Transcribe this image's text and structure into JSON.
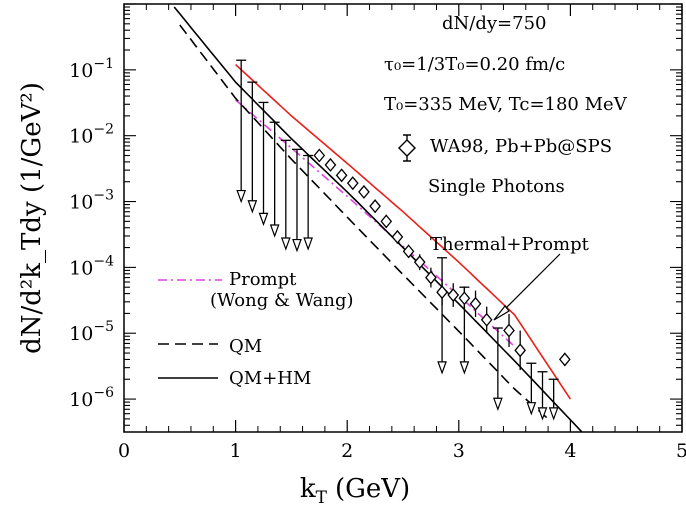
{
  "chart_data": {
    "type": "scatter",
    "xlabel": "k",
    "xlabel_sub": "T",
    "xlabel_unit": "(GeV)",
    "ylabel": "dN/d²k_Tdy (1/GeV²)",
    "xlim": [
      0,
      5
    ],
    "ylim_log10": [
      -6.5,
      0
    ],
    "yscale": "log",
    "x_ticks": [
      0,
      1,
      2,
      3,
      4,
      5
    ],
    "y_ticks": [
      -6,
      -5,
      -4,
      -3,
      -2,
      -1
    ],
    "annotations": {
      "line1": "dN/dy=750",
      "line2": "τ₀=1/3T₀=0.20 fm/c",
      "line3": "T₀=335 MeV, Tc=180 MeV",
      "data_label": "WA98, Pb+Pb@SPS",
      "single_photons": "Single Photons",
      "thermal_prompt": "Thermal+Prompt",
      "prompt_label": "Prompt",
      "prompt_sub": "(Wong & Wang)",
      "qm": "QM",
      "qm_hm": "QM+HM"
    },
    "series": [
      {
        "name": "Thermal+Prompt",
        "color": "#e8201c",
        "style": "solid",
        "x": [
          1.0,
          1.5,
          2.0,
          2.5,
          3.0,
          3.5,
          4.0
        ],
        "y": [
          0.12,
          0.02,
          0.0038,
          0.0007,
          0.00012,
          1.9e-05,
          1e-06
        ]
      },
      {
        "name": "Prompt",
        "color": "#e040e0",
        "style": "dashdot",
        "x": [
          1.0,
          1.5,
          2.0,
          2.5,
          3.0,
          3.5
        ],
        "y": [
          0.035,
          0.0065,
          0.0012,
          0.00021,
          3.7e-05,
          6.3e-06
        ]
      },
      {
        "name": "QM",
        "color": "#000000",
        "style": "dashed",
        "x": [
          0.5,
          1.0,
          1.5,
          2.0,
          2.5,
          3.0,
          3.5,
          3.8
        ],
        "y": [
          0.48,
          0.037,
          0.0044,
          0.00058,
          7.8e-05,
          1.07e-05,
          1.42e-06,
          5e-07
        ]
      },
      {
        "name": "QM+HM",
        "color": "#000000",
        "style": "solid",
        "x": [
          0.45,
          1.0,
          1.5,
          2.0,
          2.5,
          3.0,
          3.5,
          4.1
        ],
        "y": [
          0.9,
          0.065,
          0.009,
          0.0014,
          0.0002,
          2.8e-05,
          3.8e-06,
          3.2e-07
        ]
      }
    ],
    "data_points": {
      "name": "WA98, Pb+Pb@SPS",
      "x": [
        1.75,
        1.85,
        1.95,
        2.05,
        2.15,
        2.25,
        2.35,
        2.45,
        2.55,
        2.65,
        2.75,
        2.85,
        2.95,
        3.05,
        3.15,
        3.25,
        3.45,
        3.55,
        3.95
      ],
      "y": [
        0.005,
        0.0036,
        0.0025,
        0.0019,
        0.0014,
        0.00085,
        0.0005,
        0.00029,
        0.000175,
        0.00012,
        7e-05,
        4.2e-05,
        3.8e-05,
        3.4e-05,
        2.8e-05,
        1.6e-05,
        1.1e-05,
        5.5e-06,
        4e-06
      ],
      "yerr_log": [
        0.08,
        0.08,
        0.08,
        0.08,
        0.08,
        0.1,
        0.1,
        0.1,
        0.1,
        0.12,
        0.15,
        0.2,
        0.18,
        0.18,
        0.2,
        0.2,
        0.25,
        0.3,
        0.1
      ]
    },
    "upper_limits": {
      "x": [
        1.05,
        1.15,
        1.25,
        1.35,
        1.45,
        1.55,
        1.65,
        2.85,
        3.05,
        3.35,
        3.65,
        3.75,
        3.85
      ],
      "top": [
        0.14,
        0.065,
        0.032,
        0.016,
        0.0085,
        0.0062,
        0.005,
        0.00014,
        5e-05,
        1.2e-05,
        3.5e-06,
        2.6e-06,
        2e-06
      ],
      "bottom": [
        0.001,
        0.0007,
        0.00045,
        0.0003,
        0.00019,
        0.00018,
        0.00019,
        2.5e-06,
        2.5e-06,
        7e-07,
        6e-07,
        5e-07,
        5e-07
      ]
    }
  }
}
